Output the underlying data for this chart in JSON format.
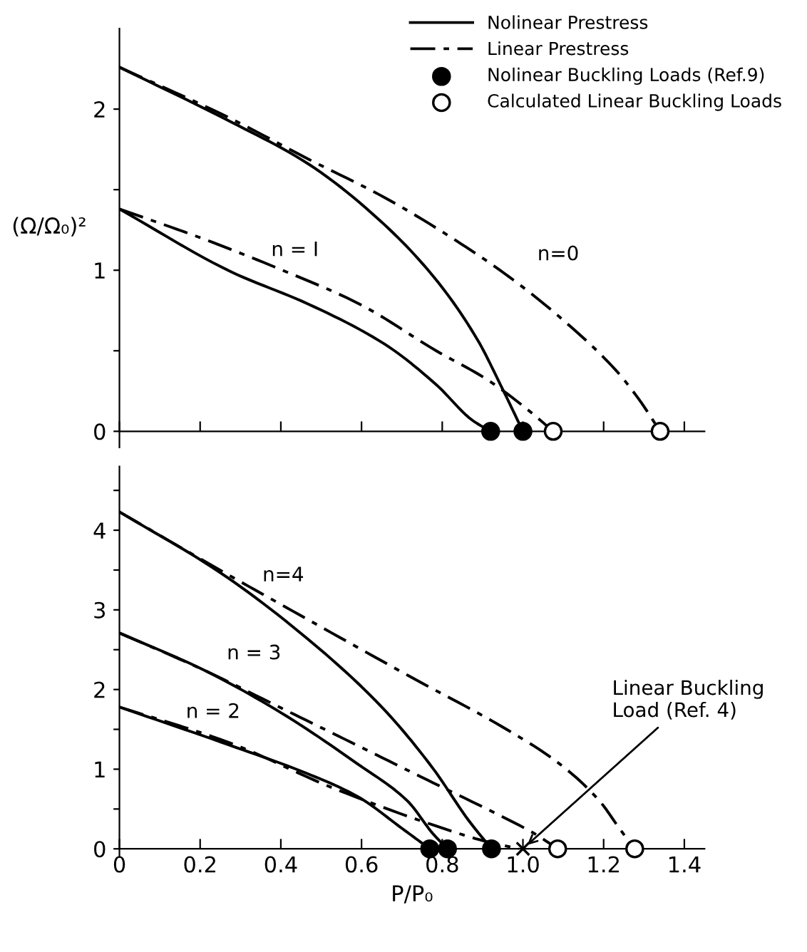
{
  "chart_data": [
    {
      "type": "line",
      "ylabel": "(Ω/Ω₀)²",
      "xlim": [
        0,
        1.45
      ],
      "ylim": [
        -0.1,
        2.5
      ],
      "xticks": [
        {
          "value": 0,
          "label": null
        },
        {
          "value": 0.2,
          "label": null
        },
        {
          "value": 0.4,
          "label": null
        },
        {
          "value": 0.6,
          "label": null
        },
        {
          "value": 0.8,
          "label": null
        },
        {
          "value": 1.0,
          "label": null
        },
        {
          "value": 1.2,
          "label": null
        },
        {
          "value": 1.4,
          "label": null
        }
      ],
      "yticks": [
        0,
        {
          "value": 0.5,
          "label": null
        },
        1,
        {
          "value": 1.5,
          "label": null
        },
        2
      ],
      "tick_labels": "y",
      "legend": "top right",
      "annotations": [
        "n = I",
        "n=0"
      ],
      "series": [
        {
          "name": "Nolinear Prestress",
          "line_style": "solid",
          "color": "#000000",
          "x": [
            0,
            0.277,
            0.468,
            0.658,
            0.785,
            0.887,
            0.95,
            1.0
          ],
          "values": [
            2.26,
            1.92,
            1.66,
            1.28,
            0.94,
            0.57,
            0.26,
            0
          ]
        },
        {
          "name": "Linear Prestress",
          "line_style": "dashed",
          "color": "#000000",
          "x": [
            0,
            0.277,
            0.468,
            0.658,
            0.849,
            0.976,
            1.1,
            1.23,
            1.29,
            1.34
          ],
          "values": [
            2.26,
            1.94,
            1.69,
            1.45,
            1.16,
            0.94,
            0.69,
            0.38,
            0.19,
            0
          ]
        },
        {
          "line_style": "solid",
          "color": "#000000",
          "x": [
            0,
            0.277,
            0.468,
            0.658,
            0.785,
            0.874,
            0.92
          ],
          "values": [
            1.38,
            0.99,
            0.79,
            0.54,
            0.29,
            0.07,
            0
          ]
        },
        {
          "line_style": "dashed",
          "color": "#000000",
          "x": [
            0,
            0.213,
            0.404,
            0.595,
            0.785,
            0.912,
            1.014,
            1.075
          ],
          "values": [
            1.38,
            1.19,
            1.0,
            0.79,
            0.5,
            0.32,
            0.13,
            0
          ]
        },
        {
          "name": "Nolinear Buckling Loads (Ref.9)",
          "type": "scatter",
          "marker": "circle",
          "color": "#000000",
          "x": [
            0.92,
            1.0
          ],
          "values": [
            0,
            0
          ]
        },
        {
          "name": "Calculated Linear Buckling Loads",
          "type": "scatter",
          "marker": "circle",
          "color": "#ffffff",
          "x": [
            1.075,
            1.34
          ],
          "values": [
            0,
            0
          ]
        }
      ]
    },
    {
      "type": "line",
      "xlabel": "P/P₀",
      "xlim": [
        0,
        1.45
      ],
      "ylim": [
        -0.1,
        4.8
      ],
      "xticks": [
        {
          "value": 0,
          "label": "0"
        },
        0.2,
        0.4,
        0.6,
        0.8,
        {
          "value": 1.0,
          "label": "1.0"
        },
        1.2,
        1.4
      ],
      "yticks": [
        0,
        {
          "value": 0.5,
          "label": null
        },
        1,
        {
          "value": 1.5,
          "label": null
        },
        2,
        {
          "value": 2.5,
          "label": null
        },
        3,
        {
          "value": 3.5,
          "label": null
        },
        4,
        {
          "value": 4.5,
          "label": null
        }
      ],
      "legend": false,
      "annotations": [
        "n=4",
        "n = 3",
        "n = 2",
        {
          "text": "Linear Buckling\nLoad (Ref. 4)",
          "x": 1.0,
          "y": 0
        }
      ],
      "series": [
        {
          "line_style": "solid",
          "color": "#000000",
          "x": [
            0,
            0.249,
            0.463,
            0.652,
            0.777,
            0.865,
            0.922
          ],
          "values": [
            4.23,
            3.47,
            2.65,
            1.77,
            1.01,
            0.36,
            0
          ]
        },
        {
          "line_style": "dashed",
          "color": "#000000",
          "x": [
            0,
            0.249,
            0.463,
            0.714,
            0.966,
            1.09,
            1.19,
            1.24,
            1.277
          ],
          "values": [
            4.23,
            3.5,
            2.89,
            2.18,
            1.48,
            1.07,
            0.6,
            0.25,
            0
          ]
        },
        {
          "line_style": "solid",
          "color": "#000000",
          "x": [
            0,
            0.211,
            0.4,
            0.589,
            0.714,
            0.777,
            0.813
          ],
          "values": [
            2.71,
            2.24,
            1.71,
            1.07,
            0.6,
            0.19,
            0
          ]
        },
        {
          "line_style": "dashed",
          "color": "#000000",
          "x": [
            0,
            0.211,
            0.4,
            0.589,
            0.777,
            0.966,
            1.029,
            1.086
          ],
          "values": [
            2.71,
            2.24,
            1.77,
            1.3,
            0.83,
            0.36,
            0.19,
            0
          ]
        },
        {
          "line_style": "solid",
          "color": "#000000",
          "x": [
            0,
            0.274,
            0.463,
            0.589,
            0.702,
            0.769
          ],
          "values": [
            1.78,
            1.3,
            0.95,
            0.66,
            0.25,
            0
          ]
        },
        {
          "line_style": "dashed",
          "color": "#000000",
          "x": [
            0,
            0.274,
            0.526,
            0.777,
            0.903,
            0.99
          ],
          "values": [
            1.78,
            1.33,
            0.77,
            0.3,
            0.1,
            0
          ]
        },
        {
          "type": "scatter",
          "marker": "circle",
          "color": "#000000",
          "x": [
            0.769,
            0.813,
            0.922
          ],
          "values": [
            0,
            0,
            0
          ]
        },
        {
          "type": "scatter",
          "marker": "circle",
          "color": "#ffffff",
          "x": [
            1.086,
            1.277
          ],
          "values": [
            0,
            0
          ]
        },
        {
          "type": "scatter",
          "marker": "cross",
          "color": "#000000",
          "x": [
            1.0
          ],
          "values": [
            0
          ]
        }
      ]
    }
  ]
}
